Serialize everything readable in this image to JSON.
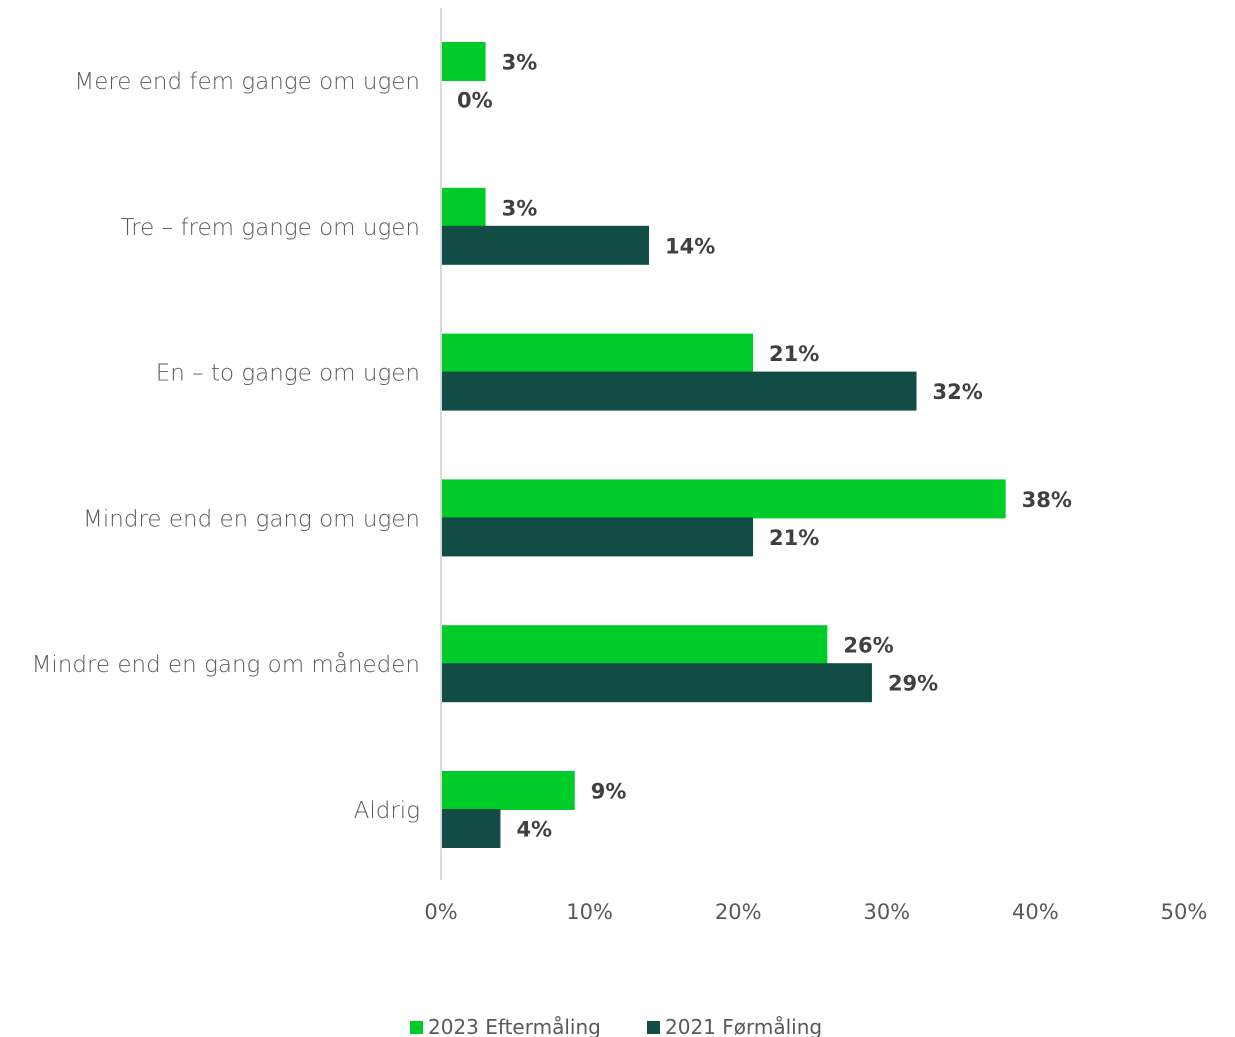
{
  "chart_data": {
    "type": "bar",
    "orientation": "horizontal",
    "categories": [
      "Mere end fem gange om ugen",
      "Tre – frem gange om ugen",
      "En – to gange om ugen",
      "Mindre end en gang om ugen",
      "Mindre end en gang om måneden",
      "Aldrig"
    ],
    "series": [
      {
        "name": "2023 Eftermåling",
        "color": "#00CC29",
        "values": [
          3,
          3,
          21,
          38,
          26,
          9
        ],
        "labels": [
          "3%",
          "3%",
          "21%",
          "38%",
          "26%",
          "9%"
        ]
      },
      {
        "name": "2021 Førmåling",
        "color": "#114D45",
        "values": [
          0,
          14,
          32,
          21,
          29,
          4
        ],
        "labels": [
          "0%",
          "14%",
          "32%",
          "21%",
          "29%",
          "4%"
        ]
      }
    ],
    "xlim": [
      0,
      50
    ],
    "xticks": [
      0,
      10,
      20,
      30,
      40,
      50
    ],
    "xtick_labels": [
      "0%",
      "10%",
      "20%",
      "30%",
      "40%",
      "50%"
    ],
    "title": "",
    "xlabel": "",
    "ylabel": "",
    "grid": false,
    "legend_position": "bottom"
  }
}
